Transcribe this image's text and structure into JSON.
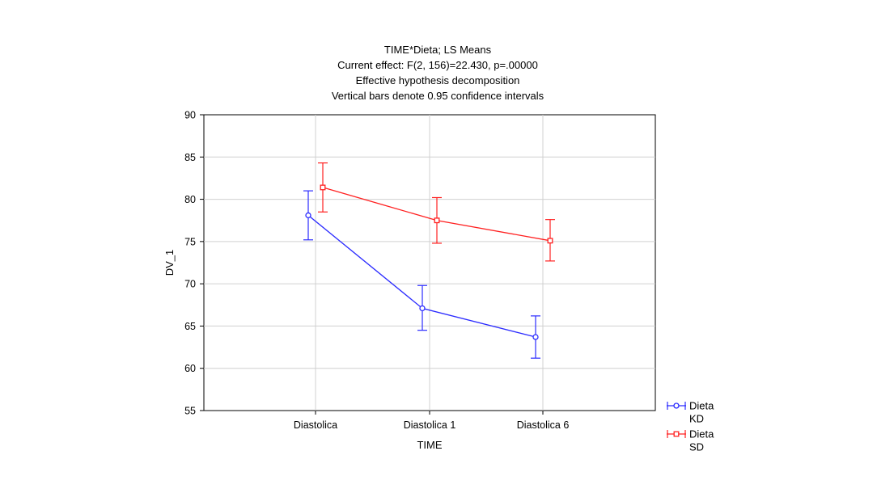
{
  "chart_data": {
    "type": "line",
    "title_lines": [
      "TIME*Dieta; LS Means",
      "Current effect: F(2, 156)=22.430, p=.00000",
      "Effective hypothesis decomposition",
      "Vertical bars denote 0.95 confidence intervals"
    ],
    "xlabel": "TIME",
    "ylabel": "DV_1",
    "categories": [
      "Diastolica",
      "Diastolica 1",
      "Diastolica 6"
    ],
    "ylim": [
      55,
      90
    ],
    "yticks": [
      55,
      60,
      65,
      70,
      75,
      80,
      85,
      90
    ],
    "yticks_labels": [
      "55",
      "60",
      "65",
      "70",
      "75",
      "80",
      "85",
      "90"
    ],
    "grid": true,
    "legend_position": "bottom-right, outside plot",
    "series": [
      {
        "name_line1": "Dieta",
        "name_line2": "KD",
        "color": "#2b2bff",
        "marker": "circle",
        "values": [
          78.1,
          67.1,
          63.7
        ],
        "ci_low": [
          75.2,
          64.5,
          61.2
        ],
        "ci_high": [
          81.0,
          69.8,
          66.2
        ]
      },
      {
        "name_line1": "Dieta",
        "name_line2": "SD",
        "color": "#ff2020",
        "marker": "square",
        "values": [
          81.4,
          77.5,
          75.1
        ],
        "ci_low": [
          78.5,
          74.8,
          72.7
        ],
        "ci_high": [
          84.3,
          80.2,
          77.6
        ]
      }
    ]
  }
}
